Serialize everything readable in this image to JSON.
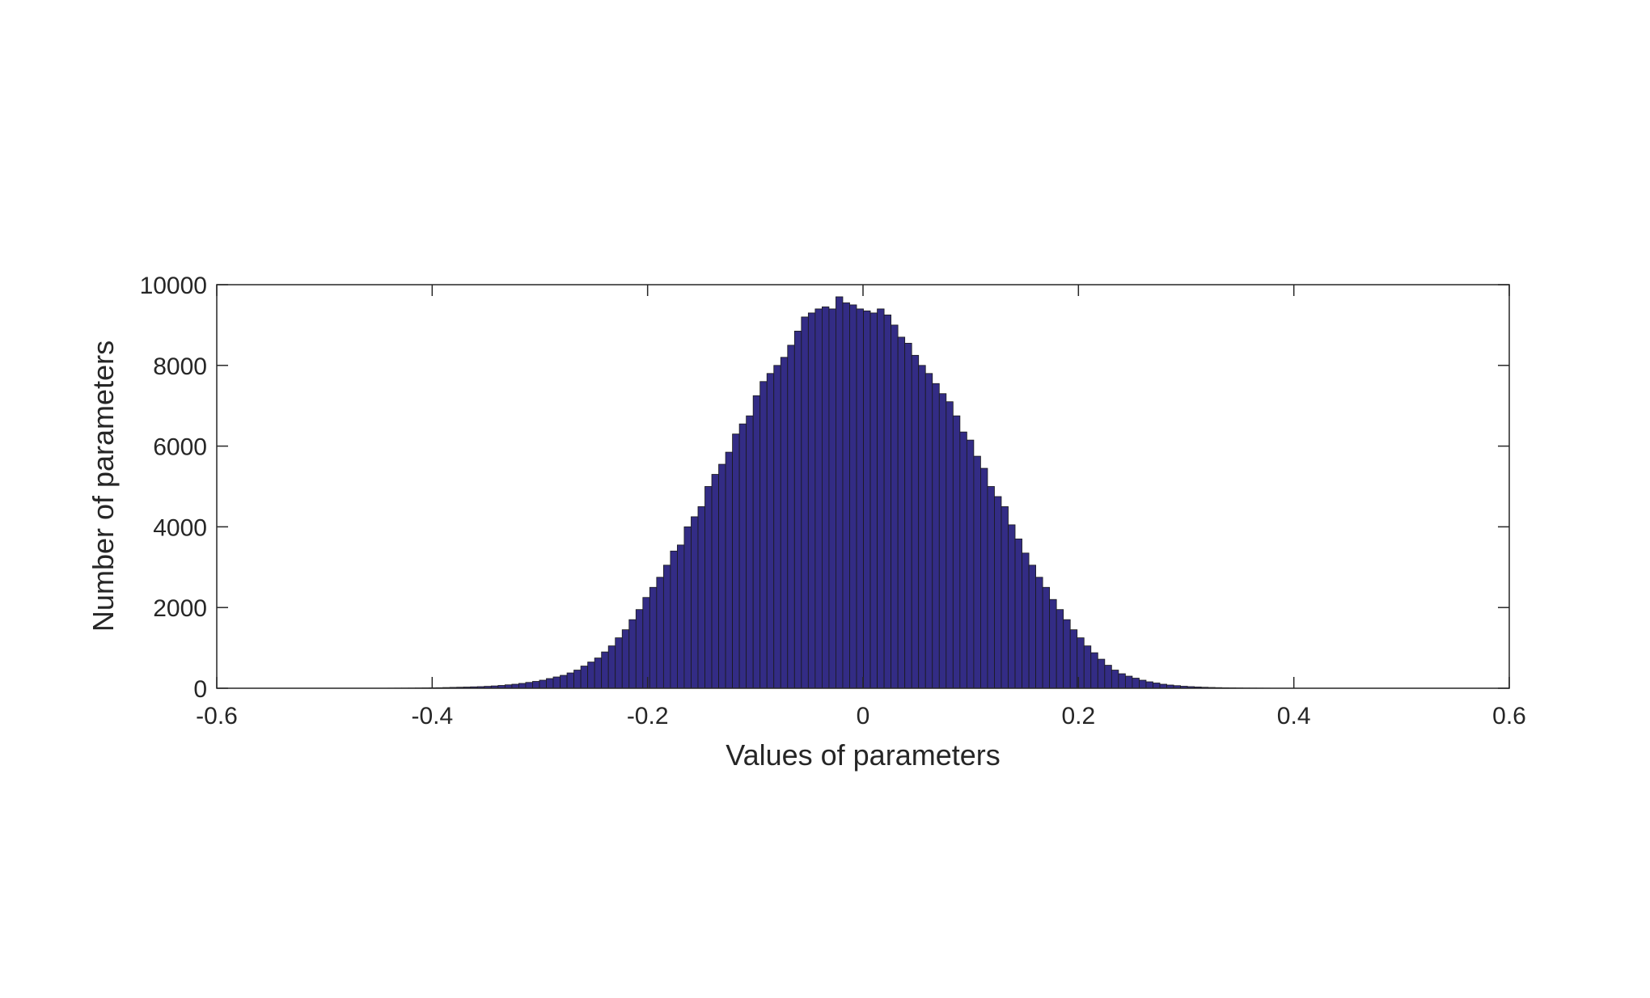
{
  "chart_data": {
    "type": "bar",
    "subtype": "histogram",
    "title": "",
    "xlabel": "Values of parameters",
    "ylabel": "Number of parameters",
    "xlim": [
      -0.6,
      0.6
    ],
    "ylim": [
      0,
      10000
    ],
    "xticks": [
      -0.6,
      -0.4,
      -0.2,
      0,
      0.2,
      0.4,
      0.6
    ],
    "xtick_labels": [
      "-0.6",
      "-0.4",
      "-0.2",
      "0",
      "0.2",
      "0.4",
      "0.6"
    ],
    "yticks": [
      0,
      2000,
      4000,
      6000,
      8000,
      10000
    ],
    "ytick_labels": [
      "0",
      "2000",
      "4000",
      "6000",
      "8000",
      "10000"
    ],
    "grid": false,
    "bar_color": "#332C85",
    "edge_color": "#1a1a1a",
    "bin_width": 0.0064,
    "bins_start": [
      -0.4476,
      -0.4412,
      -0.4348,
      -0.4284,
      -0.422,
      -0.4156,
      -0.4092,
      -0.4028,
      -0.3964,
      -0.39,
      -0.3836,
      -0.3772,
      -0.3708,
      -0.3644,
      -0.358,
      -0.3516,
      -0.3452,
      -0.3388,
      -0.3324,
      -0.326,
      -0.3196,
      -0.3132,
      -0.3068,
      -0.3004,
      -0.294,
      -0.2876,
      -0.2812,
      -0.2748,
      -0.2684,
      -0.262,
      -0.2556,
      -0.2492,
      -0.2428,
      -0.2364,
      -0.23,
      -0.2236,
      -0.2172,
      -0.2108,
      -0.2044,
      -0.198,
      -0.1916,
      -0.1852,
      -0.1788,
      -0.1724,
      -0.166,
      -0.1596,
      -0.1532,
      -0.1468,
      -0.1404,
      -0.134,
      -0.1276,
      -0.1212,
      -0.1148,
      -0.1084,
      -0.102,
      -0.0956,
      -0.0892,
      -0.0828,
      -0.0764,
      -0.07,
      -0.0636,
      -0.0572,
      -0.0508,
      -0.0444,
      -0.038,
      -0.0316,
      -0.0252,
      -0.0188,
      -0.0124,
      -0.006,
      0.0004,
      0.0068,
      0.0132,
      0.0196,
      0.026,
      0.0324,
      0.0388,
      0.0452,
      0.0516,
      0.058,
      0.0644,
      0.0708,
      0.0772,
      0.0836,
      0.09,
      0.0964,
      0.1028,
      0.1092,
      0.1156,
      0.122,
      0.1284,
      0.1348,
      0.1412,
      0.1476,
      0.154,
      0.1604,
      0.1668,
      0.1732,
      0.1796,
      0.186,
      0.1924,
      0.1988,
      0.2052,
      0.2116,
      0.218,
      0.2244,
      0.2308,
      0.2372,
      0.2436,
      0.25,
      0.2564,
      0.2628,
      0.2692,
      0.2756,
      0.282,
      0.2884,
      0.2948,
      0.3012,
      0.3076,
      0.314,
      0.3204,
      0.3268,
      0.3332,
      0.3396,
      0.346,
      0.3524,
      0.3588,
      0.3652,
      0.3716,
      0.378,
      0.3844
    ],
    "counts": [
      2,
      3,
      4,
      5,
      6,
      8,
      10,
      12,
      14,
      18,
      22,
      26,
      30,
      35,
      40,
      48,
      58,
      70,
      85,
      100,
      120,
      145,
      170,
      200,
      240,
      280,
      320,
      380,
      450,
      550,
      650,
      750,
      900,
      1050,
      1250,
      1450,
      1700,
      1950,
      2250,
      2500,
      2750,
      3050,
      3400,
      3550,
      4000,
      4250,
      4500,
      5000,
      5300,
      5550,
      5850,
      6300,
      6550,
      6750,
      7250,
      7600,
      7800,
      8000,
      8200,
      8500,
      8850,
      9200,
      9300,
      9400,
      9450,
      9400,
      9700,
      9550,
      9500,
      9400,
      9350,
      9300,
      9400,
      9250,
      9000,
      8700,
      8550,
      8250,
      8000,
      7800,
      7550,
      7300,
      7100,
      6750,
      6350,
      6150,
      5750,
      5450,
      5000,
      4750,
      4500,
      4050,
      3700,
      3350,
      3050,
      2750,
      2500,
      2200,
      1950,
      1700,
      1450,
      1250,
      1050,
      880,
      720,
      570,
      450,
      360,
      300,
      250,
      200,
      160,
      130,
      100,
      80,
      65,
      50,
      40,
      32,
      25,
      20,
      16,
      12,
      10,
      8,
      6,
      5,
      4,
      3,
      2,
      2
    ]
  }
}
